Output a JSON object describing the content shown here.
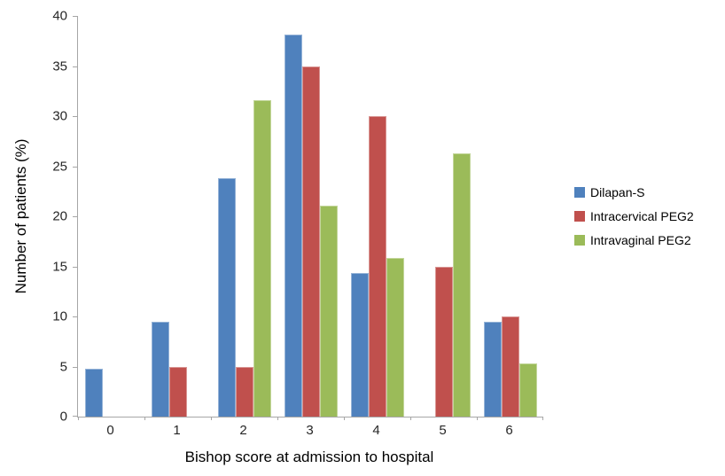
{
  "chart_data": {
    "type": "bar",
    "title": "",
    "xlabel": "Bishop score at admission to hospital",
    "ylabel": "Number of patients (%)",
    "categories": [
      "0",
      "1",
      "2",
      "3",
      "4",
      "5",
      "6"
    ],
    "series": [
      {
        "name": "Dilapan-S",
        "color": "#4F81BD",
        "border": "#95B3D7",
        "values": [
          4.8,
          9.5,
          23.8,
          38.1,
          14.3,
          0,
          9.5
        ]
      },
      {
        "name": "Intracervical PEG2",
        "color": "#C0504D",
        "border": "#D99694",
        "values": [
          0,
          5,
          5,
          35,
          30,
          15,
          10
        ]
      },
      {
        "name": "Intravaginal PEG2",
        "color": "#9BBB59",
        "border": "#C3D69B",
        "values": [
          0,
          0,
          31.6,
          21.1,
          15.8,
          26.3,
          5.3
        ]
      }
    ],
    "ylim": [
      0,
      40
    ],
    "ytick_step": 5,
    "yticks": [
      "0",
      "5",
      "10",
      "15",
      "20",
      "25",
      "30",
      "35",
      "40"
    ],
    "grid": false,
    "legend_position": "right",
    "axis_color": "#A6A6A6",
    "text_color": "#262626"
  }
}
